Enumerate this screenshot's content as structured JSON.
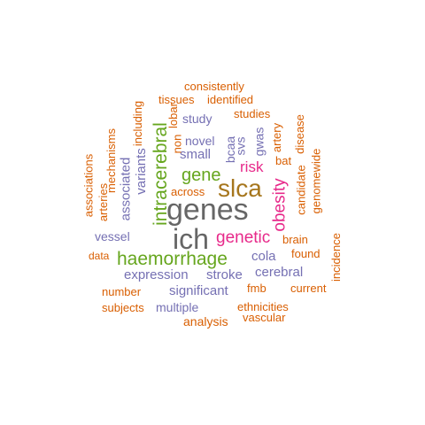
{
  "palette": {
    "orange": "#d95f02",
    "purple": "#7570b3",
    "magenta": "#e7298a",
    "green": "#66a61e",
    "gold": "#a6761d",
    "gray": "#666666"
  },
  "words": [
    {
      "text": "genes",
      "color": "#666666"
    },
    {
      "text": "ich",
      "color": "#666666"
    },
    {
      "text": "slca",
      "color": "#a6761d"
    },
    {
      "text": "haemorrhage",
      "color": "#66a61e"
    },
    {
      "text": "genetic",
      "color": "#e7298a"
    },
    {
      "text": "intracerebral",
      "color": "#66a61e"
    },
    {
      "text": "gene",
      "color": "#66a61e"
    },
    {
      "text": "obesity",
      "color": "#e7298a"
    },
    {
      "text": "risk",
      "color": "#e7298a"
    },
    {
      "text": "expression",
      "color": "#7570b3"
    },
    {
      "text": "stroke",
      "color": "#7570b3"
    },
    {
      "text": "significant",
      "color": "#7570b3"
    },
    {
      "text": "cerebral",
      "color": "#7570b3"
    },
    {
      "text": "cola",
      "color": "#7570b3"
    },
    {
      "text": "small",
      "color": "#7570b3"
    },
    {
      "text": "novel",
      "color": "#7570b3"
    },
    {
      "text": "study",
      "color": "#7570b3"
    },
    {
      "text": "variants",
      "color": "#7570b3"
    },
    {
      "text": "associated",
      "color": "#7570b3"
    },
    {
      "text": "multiple",
      "color": "#7570b3"
    },
    {
      "text": "vessel",
      "color": "#7570b3"
    },
    {
      "text": "bcaa",
      "color": "#7570b3"
    },
    {
      "text": "svs",
      "color": "#7570b3"
    },
    {
      "text": "gwas",
      "color": "#7570b3"
    },
    {
      "text": "across",
      "color": "#d95f02"
    },
    {
      "text": "brain",
      "color": "#d95f02"
    },
    {
      "text": "found",
      "color": "#d95f02"
    },
    {
      "text": "bat",
      "color": "#d95f02"
    },
    {
      "text": "consistently",
      "color": "#d95f02"
    },
    {
      "text": "identified",
      "color": "#d95f02"
    },
    {
      "text": "tissues",
      "color": "#d95f02"
    },
    {
      "text": "studies",
      "color": "#d95f02"
    },
    {
      "text": "lobar",
      "color": "#d95f02"
    },
    {
      "text": "non",
      "color": "#d95f02"
    },
    {
      "text": "artery",
      "color": "#d95f02"
    },
    {
      "text": "disease",
      "color": "#d95f02"
    },
    {
      "text": "candidate",
      "color": "#d95f02"
    },
    {
      "text": "genomewide",
      "color": "#d95f02"
    },
    {
      "text": "including",
      "color": "#d95f02"
    },
    {
      "text": "mechanisms",
      "color": "#d95f02"
    },
    {
      "text": "associations",
      "color": "#d95f02"
    },
    {
      "text": "arteries",
      "color": "#d95f02"
    },
    {
      "text": "data",
      "color": "#d95f02"
    },
    {
      "text": "number",
      "color": "#d95f02"
    },
    {
      "text": "subjects",
      "color": "#d95f02"
    },
    {
      "text": "fmb",
      "color": "#d95f02"
    },
    {
      "text": "current",
      "color": "#d95f02"
    },
    {
      "text": "incidence",
      "color": "#d95f02"
    },
    {
      "text": "ethnicities",
      "color": "#d95f02"
    },
    {
      "text": "vascular",
      "color": "#d95f02"
    },
    {
      "text": "analysis",
      "color": "#d95f02"
    }
  ]
}
